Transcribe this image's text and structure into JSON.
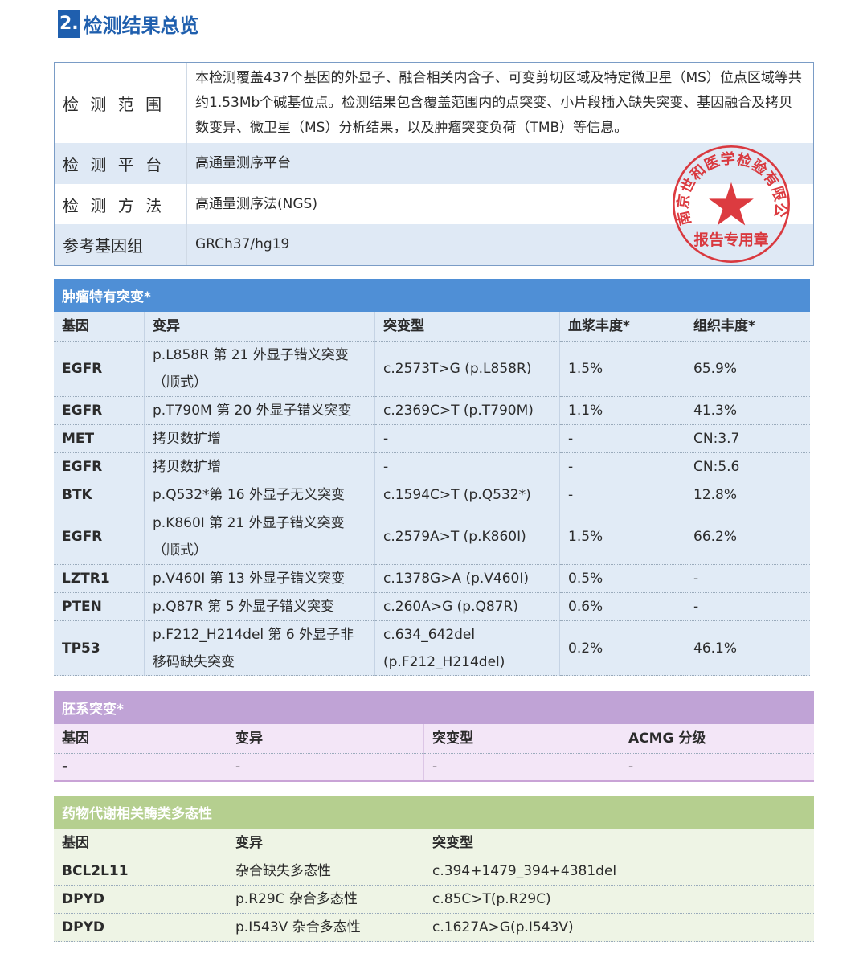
{
  "section": {
    "number": "2.",
    "title": "检测结果总览"
  },
  "overview": [
    {
      "label": "检 测 范 围",
      "value": "本检测覆盖437个基因的外显子、融合相关内含子、可变剪切区域及特定微卫星（MS）位点区域等共约1.53Mb个碱基位点。检测结果包含覆盖范围内的点突变、小片段插入缺失突变、基因融合及拷贝数变异、微卫星（MS）分析结果，以及肿瘤突变负荷（TMB）等信息。"
    },
    {
      "label": "检 测 平 台",
      "value": "高通量测序平台"
    },
    {
      "label": "检 测 方 法",
      "value": "高通量测序法(NGS)"
    },
    {
      "label": "参考基因组",
      "value": "GRCh37/hg19"
    }
  ],
  "stamp": {
    "text": "南京世和医学检验有限公司",
    "subtext": "报告专用章",
    "color": "#d9262c"
  },
  "tumor": {
    "title": "肿瘤特有突变*",
    "color": "#4f8fd6",
    "headers": [
      "基因",
      "变异",
      "突变型",
      "血浆丰度*",
      "组织丰度*"
    ],
    "rows": [
      [
        "EGFR",
        "p.L858R 第 21 外显子错义突变（顺式）",
        "c.2573T>G (p.L858R)",
        "1.5%",
        "65.9%"
      ],
      [
        "EGFR",
        "p.T790M 第 20 外显子错义突变",
        "c.2369C>T (p.T790M)",
        "1.1%",
        "41.3%"
      ],
      [
        "MET",
        "拷贝数扩增",
        "-",
        "-",
        "CN:3.7"
      ],
      [
        "EGFR",
        "拷贝数扩增",
        "-",
        "-",
        "CN:5.6"
      ],
      [
        "BTK",
        "p.Q532*第 16 外显子无义突变",
        "c.1594C>T (p.Q532*)",
        "-",
        "12.8%"
      ],
      [
        "EGFR",
        "p.K860I 第 21 外显子错义突变（顺式）",
        "c.2579A>T (p.K860I)",
        "1.5%",
        "66.2%"
      ],
      [
        "LZTR1",
        "p.V460I 第 13 外显子错义突变",
        "c.1378G>A (p.V460I)",
        "0.5%",
        "-"
      ],
      [
        "PTEN",
        "p.Q87R 第 5 外显子错义突变",
        "c.260A>G (p.Q87R)",
        "0.6%",
        "-"
      ],
      [
        "TP53",
        "p.F212_H214del 第 6 外显子非移码缺失突变",
        "c.634_642del (p.F212_H214del)",
        "0.2%",
        "46.1%"
      ]
    ]
  },
  "germline": {
    "title": "胚系突变*",
    "color": "#c0a3d6",
    "headers": [
      "基因",
      "变异",
      "突变型",
      "ACMG 分级"
    ],
    "rows": [
      [
        "-",
        "-",
        "-",
        "-"
      ]
    ]
  },
  "pharmaco": {
    "title": "药物代谢相关酶类多态性",
    "color": "#b5cf8f",
    "headers": [
      "基因",
      "变异",
      "突变型"
    ],
    "rows": [
      [
        "BCL2L11",
        "杂合缺失多态性",
        "c.394+1479_394+4381del"
      ],
      [
        "DPYD",
        "p.R29C 杂合多态性",
        "c.85C>T(p.R29C)"
      ],
      [
        "DPYD",
        "p.I543V 杂合多态性",
        "c.1627A>G(p.I543V)"
      ]
    ]
  }
}
